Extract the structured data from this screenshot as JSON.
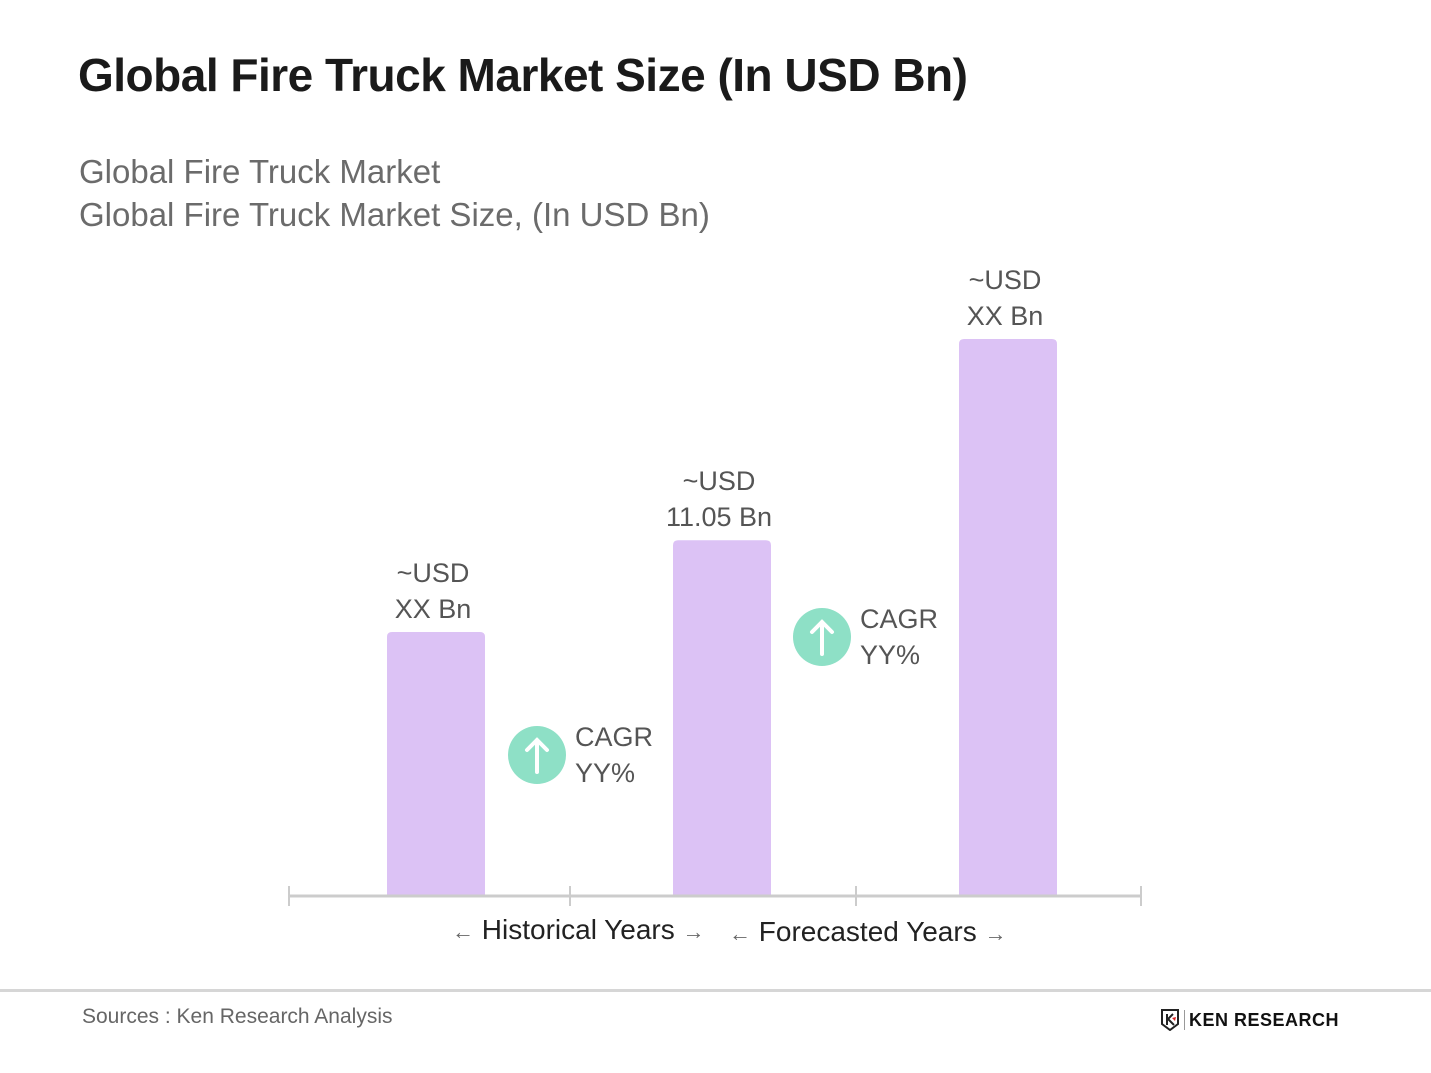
{
  "colors": {
    "bar": "#dcc2f5",
    "cagr_badge": "#8ee0c6",
    "axis": "#cccccc"
  },
  "chart_data": {
    "type": "bar",
    "title": "Global Fire Truck Market Size (In USD Bn)",
    "subtitle": [
      "Global Fire Truck Market",
      "Global Fire Truck Market Size, (In USD Bn)"
    ],
    "categories": [
      "",
      "",
      ""
    ],
    "values": [
      8.2,
      11.05,
      17.3
    ],
    "data_labels": [
      [
        "~USD",
        "XX Bn"
      ],
      [
        "~USD",
        "11.05 Bn"
      ],
      [
        "~USD",
        "XX Bn"
      ]
    ],
    "annotations": [
      {
        "icon": "arrow-up-circle-icon",
        "lines": [
          "CAGR",
          "YY%"
        ],
        "between": [
          0,
          1
        ]
      },
      {
        "icon": "arrow-up-circle-icon",
        "lines": [
          "CAGR",
          "YY%"
        ],
        "between": [
          1,
          2
        ]
      }
    ],
    "period_labels": [
      "Historical Years",
      "Forecasted Years"
    ],
    "xlabel": "",
    "ylabel": "",
    "ylim": [
      0,
      17.3
    ],
    "grid": false,
    "legend": "none"
  },
  "footer": {
    "source": "Sources : Ken Research Analysis",
    "logo": "KEN RESEARCH"
  }
}
